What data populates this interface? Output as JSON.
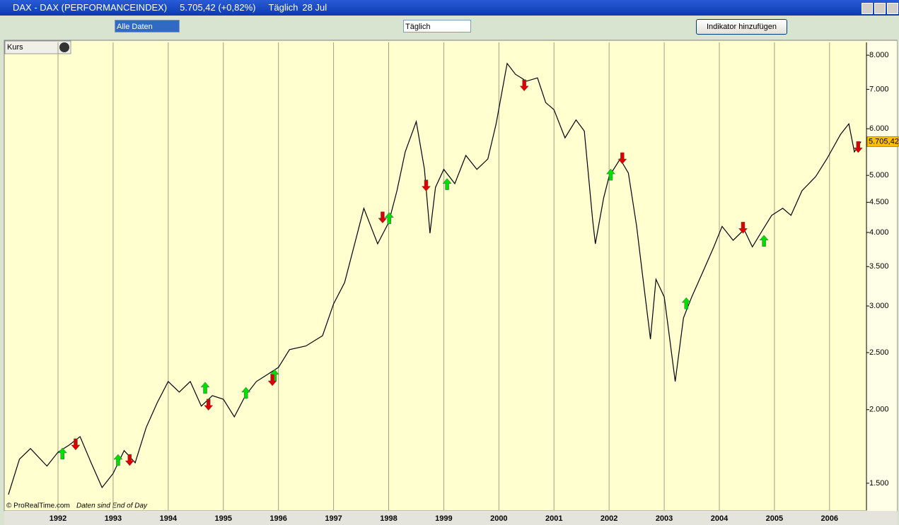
{
  "window": {
    "title": "DAX - DAX (PERFORMANCEINDEX)",
    "quote": "5.705,42 (+0,82%)",
    "period": "Täglich",
    "date": "28 Jul"
  },
  "toolbar": {
    "range_select": "Alle Daten",
    "period_select": "Täglich",
    "add_indicator": "Indikator hinzufügen"
  },
  "panel": {
    "name": "Kurs"
  },
  "footer": {
    "copyright": "© ProRealTime.com",
    "note": "Daten sind End of Day"
  },
  "chart_data": {
    "type": "line",
    "log_scale": true,
    "grid": true,
    "color": "#000000",
    "xlim": [
      1991.05,
      2006.67
    ],
    "xticks": [
      1992,
      1993,
      1994,
      1995,
      1996,
      1997,
      1998,
      1999,
      2000,
      2001,
      2002,
      2003,
      2004,
      2005,
      2006
    ],
    "ylim": [
      1350,
      8410
    ],
    "yticks": [
      {
        "value": 1500,
        "label": "1.500"
      },
      {
        "value": 2000,
        "label": "2.000"
      },
      {
        "value": 2500,
        "label": "2.500"
      },
      {
        "value": 3000,
        "label": "3.000"
      },
      {
        "value": 3500,
        "label": "3.500"
      },
      {
        "value": 4000,
        "label": "4.000"
      },
      {
        "value": 4500,
        "label": "4.500"
      },
      {
        "value": 5000,
        "label": "5.000"
      },
      {
        "value": 6000,
        "label": "6.000"
      },
      {
        "value": 7000,
        "label": "7.000"
      },
      {
        "value": 8000,
        "label": "8.000"
      }
    ],
    "x": [
      1991.1,
      1991.3,
      1991.5,
      1991.8,
      1992.0,
      1992.2,
      1992.4,
      1992.6,
      1992.8,
      1993.0,
      1993.2,
      1993.4,
      1993.6,
      1993.8,
      1994.0,
      1994.2,
      1994.4,
      1994.6,
      1994.8,
      1995.0,
      1995.2,
      1995.4,
      1995.6,
      1995.8,
      1996.0,
      1996.2,
      1996.5,
      1996.8,
      1997.0,
      1997.2,
      1997.4,
      1997.55,
      1997.8,
      1998.0,
      1998.15,
      1998.3,
      1998.5,
      1998.65,
      1998.75,
      1998.85,
      1999.0,
      1999.2,
      1999.4,
      1999.6,
      1999.8,
      1999.95,
      2000.15,
      2000.3,
      2000.5,
      2000.7,
      2000.85,
      2001.0,
      2001.2,
      2001.4,
      2001.55,
      2001.7,
      2001.75,
      2001.9,
      2002.0,
      2002.2,
      2002.35,
      2002.5,
      2002.6,
      2002.75,
      2002.85,
      2003.0,
      2003.1,
      2003.2,
      2003.35,
      2003.5,
      2003.7,
      2003.9,
      2004.05,
      2004.25,
      2004.45,
      2004.6,
      2004.75,
      2004.95,
      2005.15,
      2005.3,
      2005.5,
      2005.75,
      2005.95,
      2006.2,
      2006.35,
      2006.45,
      2006.57
    ],
    "values": [
      1435,
      1648,
      1718,
      1604,
      1694,
      1741,
      1800,
      1625,
      1475,
      1558,
      1704,
      1625,
      1866,
      2055,
      2233,
      2142,
      2233,
      2028,
      2113,
      2083,
      1945,
      2113,
      2233,
      2295,
      2360,
      2529,
      2566,
      2671,
      3024,
      3288,
      3878,
      4395,
      3825,
      4158,
      4707,
      5481,
      6170,
      5118,
      3987,
      4771,
      5118,
      4840,
      5405,
      5118,
      5330,
      6115,
      7746,
      7424,
      7226,
      7320,
      6645,
      6465,
      5790,
      6210,
      5945,
      4210,
      3825,
      4575,
      4977,
      5330,
      5045,
      4095,
      3426,
      2634,
      3331,
      3108,
      2634,
      2233,
      2863,
      3108,
      3426,
      3780,
      4095,
      3878,
      4045,
      3780,
      3987,
      4276,
      4395,
      4276,
      4707,
      4977,
      5330,
      5871,
      6115,
      5481,
      5705.42
    ],
    "last_value": {
      "value": 5705.42,
      "label": "5.705,42"
    },
    "buy_signals": {
      "color": "#00dd00",
      "x": [
        1992.08,
        1993.09,
        1994.67,
        1995.41,
        1995.93,
        1998.01,
        1999.06,
        2002.03,
        2003.4,
        2004.81
      ],
      "values": [
        1680,
        1638,
        2172,
        2130,
        2283,
        4218,
        4818,
        5001,
        3024,
        3860
      ]
    },
    "sell_signals": {
      "color": "#dd0000",
      "x": [
        1992.32,
        1993.3,
        1994.73,
        1995.89,
        1997.89,
        1998.68,
        2000.46,
        2002.24,
        2004.43,
        2006.52
      ],
      "values": [
        1751,
        1647,
        2045,
        2251,
        4253,
        4818,
        7130,
        5360,
        4085,
        5600
      ]
    }
  }
}
